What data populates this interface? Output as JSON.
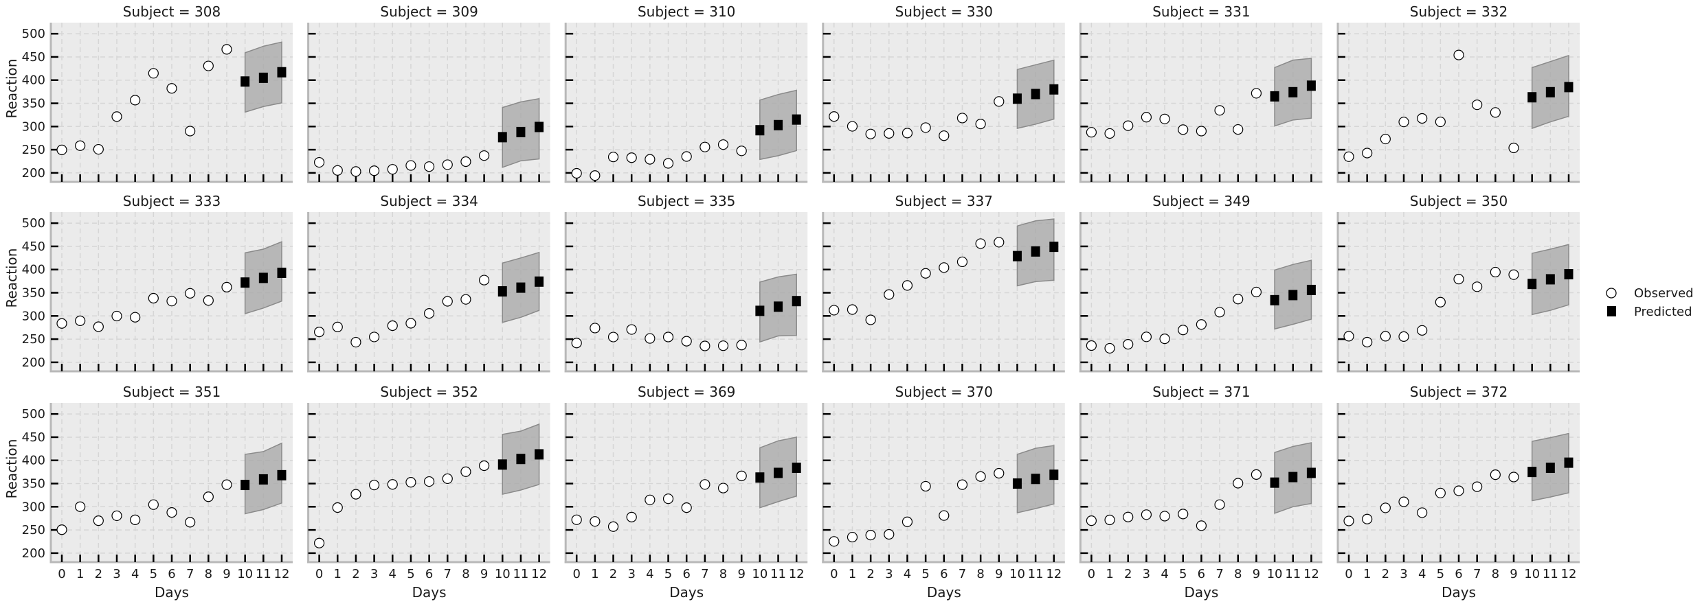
{
  "chart_data": {
    "type": "scatter",
    "layout": "facet-grid 3 rows x 6 columns",
    "xlabel": "Days",
    "ylabel": "Reaction",
    "xlim": [
      -0.6,
      12.6
    ],
    "ylim": [
      180.6,
      523.9
    ],
    "xticks": [
      "0",
      "1",
      "2",
      "3",
      "4",
      "5",
      "6",
      "7",
      "8",
      "9",
      "10",
      "11",
      "12"
    ],
    "xtick_values": [
      0,
      1,
      2,
      3,
      4,
      5,
      6,
      7,
      8,
      9,
      10,
      11,
      12
    ],
    "yticks": [
      "200",
      "250",
      "300",
      "350",
      "400",
      "450",
      "500"
    ],
    "ytick_values": [
      200,
      250,
      300,
      350,
      400,
      450,
      500
    ],
    "grid": true,
    "legend": {
      "placement": "right",
      "entries": [
        "Observed",
        "Predicted"
      ]
    },
    "observed_days": [
      0,
      1,
      2,
      3,
      4,
      5,
      6,
      7,
      8,
      9
    ],
    "predicted_days": [
      10,
      11,
      12
    ],
    "colors": {
      "panel_bg": "#ebebeb",
      "band": "#a6a6a6",
      "band_edge": "#8a8a8a",
      "predicted": "#000000",
      "observed_fill": "#ffffff"
    },
    "facets": [
      {
        "title": "Subject = 308",
        "observed": [
          249.6,
          258.7,
          250.8,
          321.4,
          356.9,
          414.7,
          382.2,
          290.1,
          430.6,
          466.4
        ],
        "predicted": [
          397,
          405,
          417
        ],
        "lower": [
          331,
          343,
          351
        ],
        "upper": [
          459,
          473,
          482
        ]
      },
      {
        "title": "Subject = 309",
        "observed": [
          222.7,
          205.3,
          203.0,
          204.7,
          207.7,
          216.0,
          213.6,
          217.7,
          224.3,
          237.3
        ],
        "predicted": [
          277,
          288,
          299
        ],
        "lower": [
          212,
          226,
          230
        ],
        "upper": [
          341,
          353,
          360
        ]
      },
      {
        "title": "Subject = 310",
        "observed": [
          199.1,
          194.3,
          234.3,
          232.8,
          229.3,
          220.5,
          235.4,
          255.8,
          261.0,
          247.5
        ],
        "predicted": [
          292,
          303,
          315
        ],
        "lower": [
          229,
          237,
          248
        ],
        "upper": [
          357,
          369,
          378
        ]
      },
      {
        "title": "Subject = 330",
        "observed": [
          321.5,
          300.4,
          283.9,
          285.1,
          285.8,
          297.6,
          280.2,
          318.3,
          305.4,
          354.0
        ],
        "predicted": [
          360,
          370,
          380
        ],
        "lower": [
          296,
          305,
          316
        ],
        "upper": [
          423,
          433,
          443
        ]
      },
      {
        "title": "Subject = 331",
        "observed": [
          287.6,
          285.0,
          301.8,
          320.1,
          316.3,
          293.3,
          290.1,
          334.8,
          293.7,
          371.6
        ],
        "predicted": [
          365,
          374,
          388
        ],
        "lower": [
          301,
          314,
          318
        ],
        "upper": [
          427,
          443,
          447
        ]
      },
      {
        "title": "Subject = 332",
        "observed": [
          234.9,
          242.8,
          273.0,
          309.8,
          317.5,
          310.0,
          454.2,
          346.8,
          330.3,
          253.9
        ],
        "predicted": [
          363,
          374,
          385
        ],
        "lower": [
          296,
          310,
          322
        ],
        "upper": [
          427,
          440,
          453
        ]
      },
      {
        "title": "Subject = 333",
        "observed": [
          283.8,
          289.6,
          276.8,
          299.8,
          297.2,
          338.2,
          332.0,
          348.8,
          333.4,
          362.0
        ],
        "predicted": [
          372,
          382,
          393
        ],
        "lower": [
          305,
          317,
          332
        ],
        "upper": [
          436,
          444,
          460
        ]
      },
      {
        "title": "Subject = 334",
        "observed": [
          265.5,
          276.2,
          243.4,
          254.7,
          279.0,
          284.2,
          305.5,
          331.5,
          335.7,
          377.3
        ],
        "predicted": [
          353,
          361,
          374
        ],
        "lower": [
          286,
          297,
          312
        ],
        "upper": [
          414,
          425,
          437
        ]
      },
      {
        "title": "Subject = 335",
        "observed": [
          241.6,
          273.9,
          254.5,
          270.8,
          251.5,
          254.6,
          245.5,
          235.3,
          235.8,
          237.2
        ],
        "predicted": [
          311,
          320,
          332
        ],
        "lower": [
          244,
          257,
          258
        ],
        "upper": [
          373,
          384,
          390
        ]
      },
      {
        "title": "Subject = 337",
        "observed": [
          312.4,
          313.8,
          291.6,
          346.1,
          365.7,
          391.8,
          404.3,
          416.7,
          455.9,
          458.9
        ],
        "predicted": [
          429,
          439,
          449
        ],
        "lower": [
          365,
          374,
          377
        ],
        "upper": [
          494,
          505,
          509
        ]
      },
      {
        "title": "Subject = 349",
        "observed": [
          236.1,
          230.3,
          238.9,
          254.9,
          250.7,
          269.8,
          281.6,
          308.1,
          336.3,
          351.6
        ],
        "predicted": [
          334,
          345,
          356
        ],
        "lower": [
          272,
          282,
          293
        ],
        "upper": [
          399,
          411,
          420
        ]
      },
      {
        "title": "Subject = 350",
        "observed": [
          256.3,
          243.5,
          256.2,
          255.5,
          268.9,
          329.7,
          379.4,
          362.9,
          394.5,
          389.0
        ],
        "predicted": [
          369,
          379,
          390
        ],
        "lower": [
          303,
          312,
          324
        ],
        "upper": [
          435,
          444,
          454
        ]
      },
      {
        "title": "Subject = 351",
        "observed": [
          250.5,
          300.1,
          269.9,
          280.6,
          271.8,
          304.6,
          287.7,
          266.6,
          321.5,
          347.6
        ],
        "predicted": [
          347,
          359,
          368
        ],
        "lower": [
          285,
          294,
          308
        ],
        "upper": [
          413,
          419,
          437
        ]
      },
      {
        "title": "Subject = 352",
        "observed": [
          221.7,
          298.2,
          326.9,
          346.8,
          348.2,
          352.8,
          354.4,
          360.5,
          375.6,
          388.5
        ],
        "predicted": [
          391,
          403,
          413
        ],
        "lower": [
          327,
          336,
          348
        ],
        "upper": [
          456,
          463,
          478
        ]
      },
      {
        "title": "Subject = 369",
        "observed": [
          271.9,
          268.4,
          257.2,
          277.7,
          314.8,
          317.2,
          298.1,
          348.1,
          340.3,
          366.5
        ],
        "predicted": [
          363,
          373,
          384
        ],
        "lower": [
          298,
          311,
          323
        ],
        "upper": [
          427,
          442,
          450
        ]
      },
      {
        "title": "Subject = 370",
        "observed": [
          225.3,
          234.5,
          238.9,
          240.5,
          267.5,
          344.2,
          281.1,
          347.6,
          365.2,
          372.2
        ],
        "predicted": [
          350,
          360,
          369
        ],
        "lower": [
          287,
          296,
          306
        ],
        "upper": [
          413,
          426,
          432
        ]
      },
      {
        "title": "Subject = 371",
        "observed": [
          269.9,
          271.6,
          277.9,
          283.0,
          279.8,
          284.4,
          259.2,
          304.6,
          350.8,
          369.5
        ],
        "predicted": [
          352,
          364,
          373
        ],
        "lower": [
          286,
          300,
          307
        ],
        "upper": [
          417,
          430,
          438
        ]
      },
      {
        "title": "Subject = 372",
        "observed": [
          269.4,
          273.5,
          297.6,
          310.6,
          287.2,
          329.6,
          334.5,
          343.2,
          369.1,
          364.1
        ],
        "predicted": [
          375,
          384,
          395
        ],
        "lower": [
          313,
          321,
          330
        ],
        "upper": [
          441,
          449,
          458
        ]
      }
    ]
  }
}
